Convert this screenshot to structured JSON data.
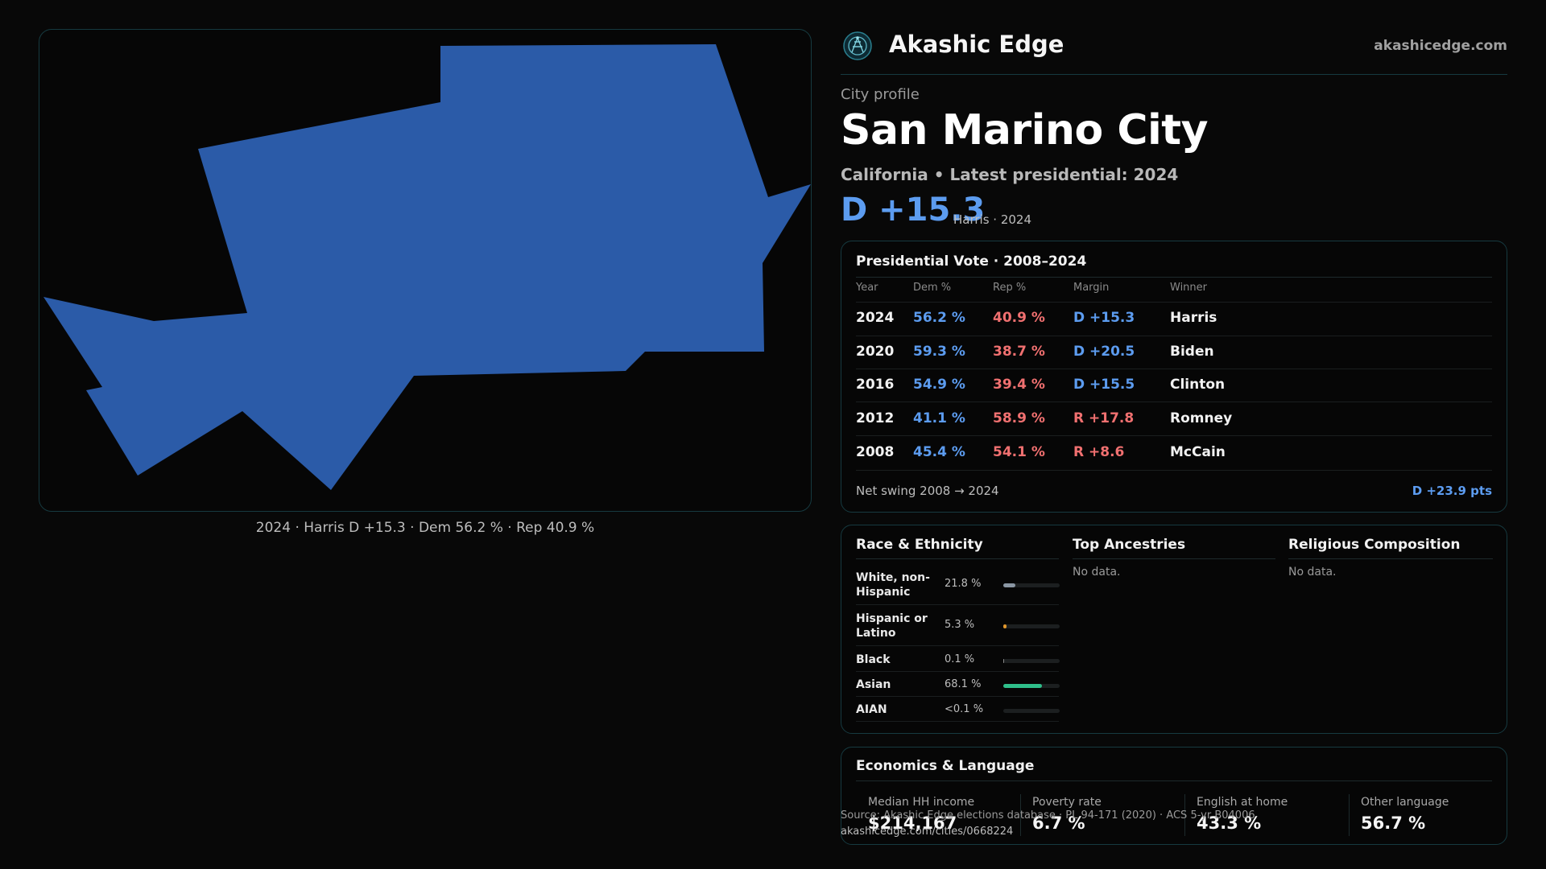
{
  "map": {
    "caption": "2024 · Harris D +15.3 · Dem 56.2 % · Rep 40.9 %",
    "fill_color": "#2b5ba8"
  },
  "brand": {
    "name": "Akashic Edge",
    "url": "akashicedge.com",
    "logo_icon": "atom-circle-icon"
  },
  "profile": {
    "kicker": "City profile",
    "city": "San Marino City",
    "subtitle": "California • Latest presidential: 2024",
    "margin": "D +15.3",
    "margin_sub": "Harris · 2024"
  },
  "vote": {
    "title": "Presidential Vote · 2008–2024",
    "headers": [
      "Year",
      "Dem %",
      "Rep %",
      "Margin",
      "Winner"
    ],
    "rows": [
      {
        "year": "2024",
        "dem": "56.2 %",
        "rep": "40.9 %",
        "margin": "D +15.3",
        "winner": "Harris",
        "party": "D"
      },
      {
        "year": "2020",
        "dem": "59.3 %",
        "rep": "38.7 %",
        "margin": "D +20.5",
        "winner": "Biden",
        "party": "D"
      },
      {
        "year": "2016",
        "dem": "54.9 %",
        "rep": "39.4 %",
        "margin": "D +15.5",
        "winner": "Clinton",
        "party": "D"
      },
      {
        "year": "2012",
        "dem": "41.1 %",
        "rep": "58.9 %",
        "margin": "R +17.8",
        "winner": "Romney",
        "party": "R"
      },
      {
        "year": "2008",
        "dem": "45.4 %",
        "rep": "54.1 %",
        "margin": "R +8.6",
        "winner": "McCain",
        "party": "R"
      }
    ],
    "swing_label": "Net swing 2008 → 2024",
    "swing_value": "D +23.9 pts"
  },
  "demographics": {
    "race_title": "Race & Ethnicity",
    "race": [
      {
        "label": "White, non-Hispanic",
        "pct": "21.8 %",
        "value": 21.8,
        "color": "#8a96a3"
      },
      {
        "label": "Hispanic or Latino",
        "pct": "5.3 %",
        "value": 5.3,
        "color": "#e0962c"
      },
      {
        "label": "Black",
        "pct": "0.1 %",
        "value": 0.1,
        "color": "#8a8a8a"
      },
      {
        "label": "Asian",
        "pct": "68.1 %",
        "value": 68.1,
        "color": "#2fbf8a"
      },
      {
        "label": "AIAN",
        "pct": "<0.1 %",
        "value": 0,
        "color": "#8a8a8a"
      }
    ],
    "ancestry_title": "Top Ancestries",
    "ancestry_empty": "No data.",
    "religion_title": "Religious Composition",
    "religion_empty": "No data."
  },
  "economics": {
    "title": "Economics & Language",
    "stats": [
      {
        "label": "Median HH income",
        "value": "$214,167"
      },
      {
        "label": "Poverty rate",
        "value": "6.7 %"
      },
      {
        "label": "English at home",
        "value": "43.3 %"
      },
      {
        "label": "Other language",
        "value": "56.7 %"
      }
    ]
  },
  "footer": {
    "source": "Source: Akashic Edge elections database · PL 94-171 (2020) · ACS 5-yr B04006",
    "url": "akashicedge.com/cities/0668224"
  }
}
